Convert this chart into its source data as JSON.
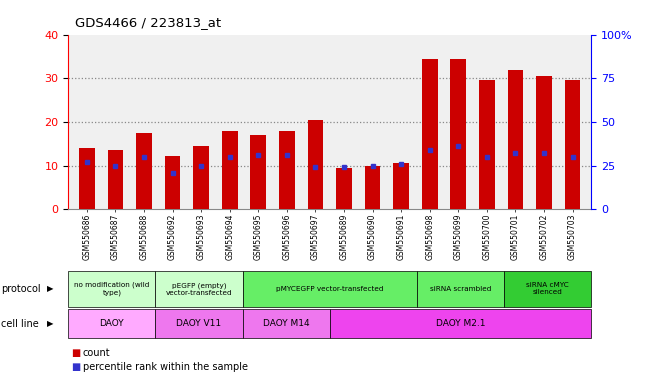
{
  "title": "GDS4466 / 223813_at",
  "samples": [
    "GSM550686",
    "GSM550687",
    "GSM550688",
    "GSM550692",
    "GSM550693",
    "GSM550694",
    "GSM550695",
    "GSM550696",
    "GSM550697",
    "GSM550689",
    "GSM550690",
    "GSM550691",
    "GSM550698",
    "GSM550699",
    "GSM550700",
    "GSM550701",
    "GSM550702",
    "GSM550703"
  ],
  "counts": [
    14.0,
    13.5,
    17.5,
    12.2,
    14.5,
    18.0,
    17.0,
    18.0,
    20.5,
    9.5,
    10.0,
    10.5,
    34.5,
    34.5,
    29.5,
    32.0,
    30.5,
    29.5
  ],
  "percentiles_pct": [
    27,
    25,
    30,
    21,
    25,
    30,
    31,
    31,
    24,
    24,
    25,
    26,
    34,
    36,
    30,
    32,
    32,
    30
  ],
  "bar_color": "#cc0000",
  "dot_color": "#3333cc",
  "ylim_left": [
    0,
    40
  ],
  "ylim_right": [
    0,
    100
  ],
  "yticks_left": [
    0,
    10,
    20,
    30,
    40
  ],
  "yticks_right": [
    0,
    25,
    50,
    75,
    100
  ],
  "yticklabels_right": [
    "0",
    "25",
    "50",
    "75",
    "100%"
  ],
  "protocol_groups": [
    {
      "label": "no modification (wild\ntype)",
      "start": 0,
      "end": 3,
      "color": "#ccffcc"
    },
    {
      "label": "pEGFP (empty)\nvector-transfected",
      "start": 3,
      "end": 6,
      "color": "#ccffcc"
    },
    {
      "label": "pMYCEGFP vector-transfected",
      "start": 6,
      "end": 12,
      "color": "#66ee66"
    },
    {
      "label": "siRNA scrambled",
      "start": 12,
      "end": 15,
      "color": "#66ee66"
    },
    {
      "label": "siRNA cMYC\nsilenced",
      "start": 15,
      "end": 18,
      "color": "#33cc33"
    }
  ],
  "cellline_groups": [
    {
      "label": "DAOY",
      "start": 0,
      "end": 3,
      "color": "#ffaaff"
    },
    {
      "label": "DAOY V11",
      "start": 3,
      "end": 6,
      "color": "#ee77ee"
    },
    {
      "label": "DAOY M14",
      "start": 6,
      "end": 9,
      "color": "#ee77ee"
    },
    {
      "label": "DAOY M2.1",
      "start": 9,
      "end": 18,
      "color": "#ee44ee"
    }
  ],
  "legend_count_color": "#cc0000",
  "legend_pct_color": "#3333cc",
  "bg_color": "#ffffff",
  "grid_color": "#888888",
  "axis_bg": "#f0f0f0"
}
